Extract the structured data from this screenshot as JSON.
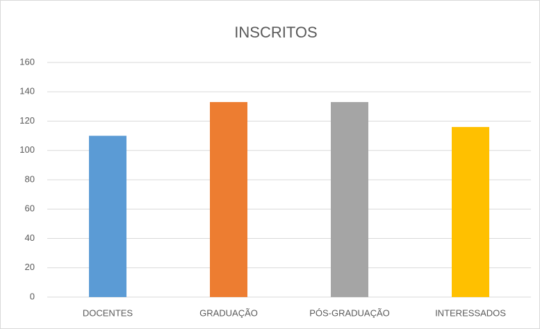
{
  "chart_data": {
    "type": "bar",
    "title": "INSCRITOS",
    "categories": [
      "DOCENTES",
      "GRADUAÇÃO",
      "PÓS-GRADUAÇÃO",
      "INTERESSADOS"
    ],
    "values": [
      110,
      133,
      133,
      116
    ],
    "colors": [
      "#5b9bd5",
      "#ed7d31",
      "#a5a5a5",
      "#ffc000"
    ],
    "ylim": [
      0,
      160
    ],
    "yticks": [
      0,
      20,
      40,
      60,
      80,
      100,
      120,
      140,
      160
    ],
    "grid": true
  }
}
